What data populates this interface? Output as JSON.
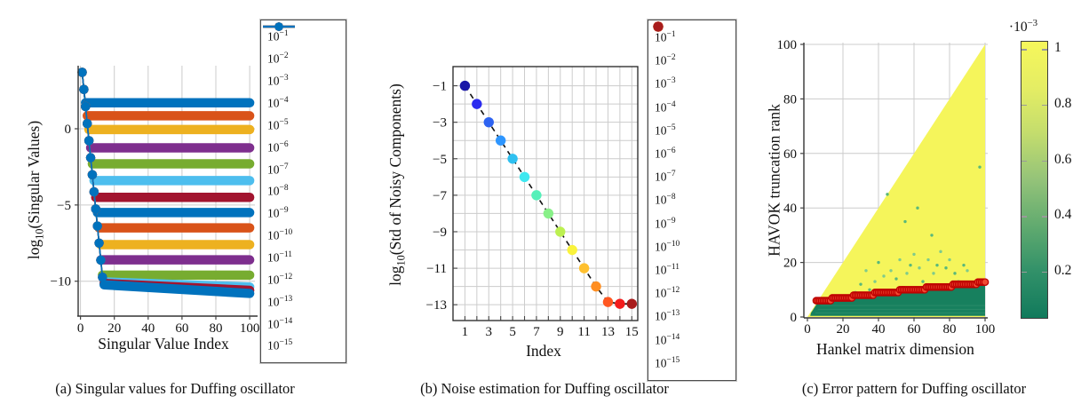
{
  "chart_data": [
    {
      "type": "line",
      "panel": "a",
      "caption": "(a) Singular values for Duffing oscillator",
      "xlabel": "Singular Value Index",
      "ylabel": "log10(Singular Values)",
      "ylabel_parts": {
        "prefix": "log",
        "sub": "10",
        "rest": "(Singular Values)"
      },
      "xlim": [
        -1.4,
        100
      ],
      "ylim": [
        -12.35,
        4.0
      ],
      "xticks": [
        0,
        20,
        40,
        60,
        80,
        100
      ],
      "yticks": [
        0,
        -5,
        -10
      ],
      "grid": true,
      "legend_position": "right",
      "x_index_range": [
        1,
        100
      ],
      "signal_decay": {
        "y_at_x1": 3.7,
        "slope_per_index": -1.12,
        "x_end": 13
      },
      "series": [
        {
          "label_base": "10",
          "label_exp": "−1",
          "noise_level": "1e-1",
          "color": "#0072BD",
          "floor_start": 1.7,
          "floor_end": 1.7
        },
        {
          "label_base": "10",
          "label_exp": "−2",
          "noise_level": "1e-2",
          "color": "#D95319",
          "floor_start": 0.85,
          "floor_end": 0.85
        },
        {
          "label_base": "10",
          "label_exp": "−3",
          "noise_level": "1e-3",
          "color": "#EDB120",
          "floor_start": -0.05,
          "floor_end": -0.05
        },
        {
          "label_base": "10",
          "label_exp": "−4",
          "noise_level": "1e-4",
          "color": "#7E2F8E",
          "floor_start": -1.25,
          "floor_end": -1.25
        },
        {
          "label_base": "10",
          "label_exp": "−5",
          "noise_level": "1e-5",
          "color": "#77AC30",
          "floor_start": -2.3,
          "floor_end": -2.3
        },
        {
          "label_base": "10",
          "label_exp": "−6",
          "noise_level": "1e-6",
          "color": "#4DBEEE",
          "floor_start": -3.4,
          "floor_end": -3.4
        },
        {
          "label_base": "10",
          "label_exp": "−7",
          "noise_level": "1e-7",
          "color": "#A2142F",
          "floor_start": -4.5,
          "floor_end": -4.5
        },
        {
          "label_base": "10",
          "label_exp": "−8",
          "noise_level": "1e-8",
          "color": "#0072BD",
          "floor_start": -5.5,
          "floor_end": -5.5
        },
        {
          "label_base": "10",
          "label_exp": "−9",
          "noise_level": "1e-9",
          "color": "#D95319",
          "floor_start": -6.5,
          "floor_end": -6.5
        },
        {
          "label_base": "10",
          "label_exp": "−10",
          "noise_level": "1e-10",
          "color": "#EDB120",
          "floor_start": -7.6,
          "floor_end": -7.6
        },
        {
          "label_base": "10",
          "label_exp": "−11",
          "noise_level": "1e-11",
          "color": "#7E2F8E",
          "floor_start": -8.6,
          "floor_end": -8.6
        },
        {
          "label_base": "10",
          "label_exp": "−12",
          "noise_level": "1e-12",
          "color": "#77AC30",
          "floor_start": -9.6,
          "floor_end": -9.6
        },
        {
          "label_base": "10",
          "label_exp": "−13",
          "noise_level": "1e-13",
          "color": "#4DBEEE",
          "floor_start": -10.0,
          "floor_end": -10.38
        },
        {
          "label_base": "10",
          "label_exp": "−14",
          "noise_level": "1e-14",
          "color": "#A2142F",
          "floor_start": -10.08,
          "floor_end": -10.6
        },
        {
          "label_base": "10",
          "label_exp": "−15",
          "noise_level": "1e-15",
          "color": "#0072BD",
          "floor_start": -10.15,
          "floor_end": -10.8
        }
      ]
    },
    {
      "type": "scatter",
      "panel": "b",
      "caption": "(b) Noise estimation for Duffing oscillator",
      "xlabel": "Index",
      "ylabel": "log10(Std of Noisy Components)",
      "ylabel_parts": {
        "prefix": "log",
        "sub": "10",
        "rest": "(Std of Noisy Components)"
      },
      "xlim": [
        0,
        15.5
      ],
      "ylim": [
        -13.9,
        0.05
      ],
      "xticks": [
        1,
        3,
        5,
        7,
        9,
        11,
        13,
        15
      ],
      "yticks": [
        -1,
        -3,
        -5,
        -7,
        -9,
        -11,
        -13
      ],
      "grid_step": 1,
      "connector": "dashed-black",
      "points": [
        {
          "x": 1,
          "y": -1,
          "color": "#1A17A8",
          "label_base": "10",
          "label_exp": "−1"
        },
        {
          "x": 2,
          "y": -2,
          "color": "#2B2BEF",
          "label_base": "10",
          "label_exp": "−2"
        },
        {
          "x": 3,
          "y": -3,
          "color": "#2E63F1",
          "label_base": "10",
          "label_exp": "−3"
        },
        {
          "x": 4,
          "y": -4,
          "color": "#2E96FF",
          "label_base": "10",
          "label_exp": "−4"
        },
        {
          "x": 5,
          "y": -5,
          "color": "#2FC0F0",
          "label_base": "10",
          "label_exp": "−5"
        },
        {
          "x": 6,
          "y": -6,
          "color": "#3FE8F0",
          "label_base": "10",
          "label_exp": "−6"
        },
        {
          "x": 7,
          "y": -7,
          "color": "#55F0B9",
          "label_base": "10",
          "label_exp": "−7"
        },
        {
          "x": 8,
          "y": -8,
          "color": "#88F088",
          "label_base": "10",
          "label_exp": "−8"
        },
        {
          "x": 9,
          "y": -9,
          "color": "#BCF051",
          "label_base": "10",
          "label_exp": "−9"
        },
        {
          "x": 10,
          "y": -10,
          "color": "#FAF33C",
          "label_base": "10",
          "label_exp": "−10"
        },
        {
          "x": 11,
          "y": -11,
          "color": "#FFC02F",
          "label_base": "10",
          "label_exp": "−11"
        },
        {
          "x": 12,
          "y": -12,
          "color": "#FF8E21",
          "label_base": "10",
          "label_exp": "−12"
        },
        {
          "x": 13,
          "y": -12.85,
          "color": "#FF5721",
          "label_base": "10",
          "label_exp": "−13"
        },
        {
          "x": 14,
          "y": -12.95,
          "color": "#F41C1C",
          "label_base": "10",
          "label_exp": "−14"
        },
        {
          "x": 15,
          "y": -12.95,
          "color": "#A81C1C",
          "label_base": "10",
          "label_exp": "−15"
        }
      ]
    },
    {
      "type": "heatmap",
      "panel": "c",
      "caption": "(c) Error pattern for Duffing oscillator",
      "xlabel": "Hankel matrix dimension",
      "ylabel": "HAVOK truncation rank",
      "xlim": [
        -2,
        101.5
      ],
      "ylim": [
        -0.3,
        100.9
      ],
      "xticks": [
        0,
        20,
        40,
        60,
        80,
        100
      ],
      "yticks": [
        0,
        20,
        40,
        60,
        80,
        100
      ],
      "region_high_error": {
        "shape": "triangle",
        "vertices": [
          [
            0,
            0
          ],
          [
            100,
            100
          ],
          [
            100,
            0
          ]
        ],
        "color": "#F5F55B"
      },
      "region_low_error": {
        "color": "#17805E",
        "streak_color": "#2E8E6B"
      },
      "boundary_markers": {
        "color_fill": "#F04A32",
        "color_stroke": "#BE0000",
        "x_range": [
          5,
          100
        ],
        "steps": [
          {
            "x0": 5,
            "x1": 13,
            "rank": 6
          },
          {
            "x0": 14,
            "x1": 25,
            "rank": 7
          },
          {
            "x0": 26,
            "x1": 37,
            "rank": 8
          },
          {
            "x0": 38,
            "x1": 51,
            "rank": 9
          },
          {
            "x0": 52,
            "x1": 66,
            "rank": 10
          },
          {
            "x0": 67,
            "x1": 81,
            "rank": 11
          },
          {
            "x0": 82,
            "x1": 95,
            "rank": 12
          },
          {
            "x0": 96,
            "x1": 100,
            "rank": 12.8
          }
        ]
      },
      "speckles": {
        "colors": [
          "#7FCB8B",
          "#59B87B"
        ],
        "points": [
          [
            27,
            9
          ],
          [
            30,
            12
          ],
          [
            33,
            17
          ],
          [
            35,
            10
          ],
          [
            38,
            13
          ],
          [
            40,
            20
          ],
          [
            43,
            15
          ],
          [
            45,
            45
          ],
          [
            47,
            17
          ],
          [
            50,
            14
          ],
          [
            52,
            21
          ],
          [
            55,
            35
          ],
          [
            56,
            16
          ],
          [
            58,
            19
          ],
          [
            60,
            23
          ],
          [
            62,
            40
          ],
          [
            63,
            18
          ],
          [
            65,
            13
          ],
          [
            68,
            21
          ],
          [
            70,
            30
          ],
          [
            71,
            16
          ],
          [
            73,
            19
          ],
          [
            75,
            24
          ],
          [
            78,
            18
          ],
          [
            80,
            21
          ],
          [
            83,
            16
          ],
          [
            85,
            13
          ],
          [
            88,
            19
          ],
          [
            90,
            17
          ],
          [
            97,
            55
          ]
        ]
      },
      "colorbar": {
        "title_parts": {
          "prefix": "·",
          "base": "10",
          "exp": "−3"
        },
        "ticks": [
          1,
          0.8,
          0.6,
          0.4,
          0.2
        ],
        "range": [
          0.03,
          1.03
        ],
        "gradient_top_to_bottom": [
          "#F6F75B",
          "#E4ED64",
          "#C4DD6D",
          "#94C379",
          "#60AA6F",
          "#329169",
          "#117A5C"
        ]
      }
    }
  ]
}
